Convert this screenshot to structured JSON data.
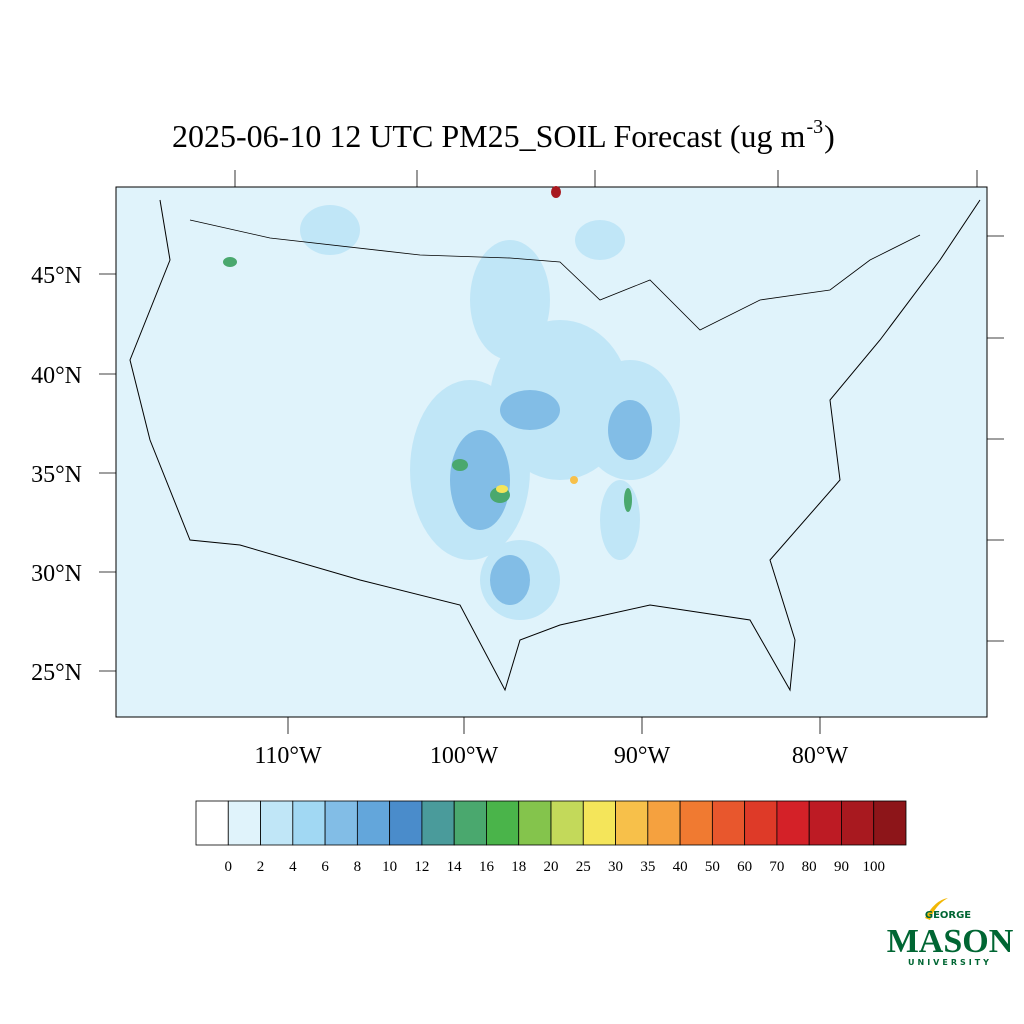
{
  "title": {
    "text": "2025-06-10 12 UTC PM25_SOIL Forecast (ug m",
    "superscript": "-3",
    "closing": ")"
  },
  "lat_labels": [
    "45°N",
    "40°N",
    "35°N",
    "30°N",
    "25°N"
  ],
  "lon_labels": [
    "110°W",
    "100°W",
    "90°W",
    "80°W"
  ],
  "colorbar": {
    "levels": [
      0,
      2,
      4,
      6,
      8,
      10,
      12,
      14,
      16,
      18,
      20,
      25,
      30,
      35,
      40,
      50,
      60,
      70,
      80,
      90,
      100
    ],
    "colors": [
      "#ffffff",
      "#e0f3fb",
      "#c0e6f7",
      "#a1d8f3",
      "#82bde6",
      "#63a6db",
      "#4a8ccb",
      "#4a9b9b",
      "#4aa86e",
      "#4ab44a",
      "#84c44c",
      "#c3d95a",
      "#f4e55a",
      "#f7c04a",
      "#f5a13f",
      "#f07a31",
      "#e8572d",
      "#de3a28",
      "#d42128",
      "#bd1b24",
      "#a8191f",
      "#8d1519"
    ]
  },
  "logo": {
    "top": "GEORGE",
    "main": "MASON",
    "bottom": "UNIVERSITY"
  }
}
